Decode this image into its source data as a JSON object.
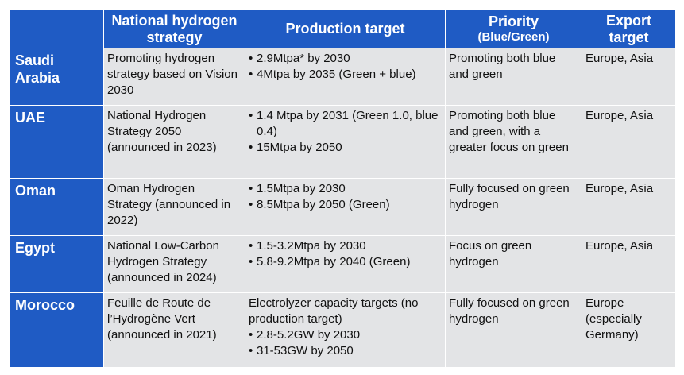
{
  "table": {
    "headers": {
      "strategy": "National hydrogen strategy",
      "production": "Production target",
      "priority": "Priority",
      "priority_sub": "(Blue/Green)",
      "export": "Export target"
    },
    "rows": [
      {
        "country": "Saudi Arabia",
        "strategy": "Promoting hydrogen strategy based on Vision 2030",
        "production_note": "",
        "production": [
          "2.9Mtpa* by 2030",
          "4Mtpa by 2035 (Green + blue)"
        ],
        "priority": "Promoting both blue and green",
        "export": "Europe, Asia"
      },
      {
        "country": "UAE",
        "strategy": "National Hydrogen Strategy 2050 (announced in 2023)",
        "production_note": "",
        "production": [
          "1.4 Mtpa by 2031 (Green 1.0, blue 0.4)",
          "15Mtpa by 2050"
        ],
        "priority": "Promoting both blue and green, with a greater focus on green",
        "export": "Europe, Asia"
      },
      {
        "country": "Oman",
        "strategy": "Oman Hydrogen Strategy (announced in 2022)",
        "production_note": "",
        "production": [
          "1.5Mtpa by 2030",
          "8.5Mtpa by 2050 (Green)"
        ],
        "priority": "Fully focused on green hydrogen",
        "export": "Europe, Asia"
      },
      {
        "country": "Egypt",
        "strategy": "National Low-Carbon Hydrogen Strategy (announced in 2024)",
        "production_note": "",
        "production": [
          "1.5-3.2Mtpa by 2030",
          "5.8-9.2Mtpa by 2040 (Green)"
        ],
        "priority": "Focus on green hydrogen",
        "export": "Europe, Asia"
      },
      {
        "country": "Morocco",
        "strategy": "Feuille de Route de l’Hydrogène Vert (announced in 2021)",
        "production_note": "Electrolyzer capacity targets (no production target)",
        "production": [
          "2.8-5.2GW by 2030",
          "31-53GW by 2050"
        ],
        "priority": "Fully focused on green hydrogen",
        "export": "Europe (especially Germany)"
      }
    ]
  },
  "colors": {
    "header_bg": "#1f5bc4",
    "cell_bg": "#e3e4e6",
    "header_text": "#ffffff"
  }
}
